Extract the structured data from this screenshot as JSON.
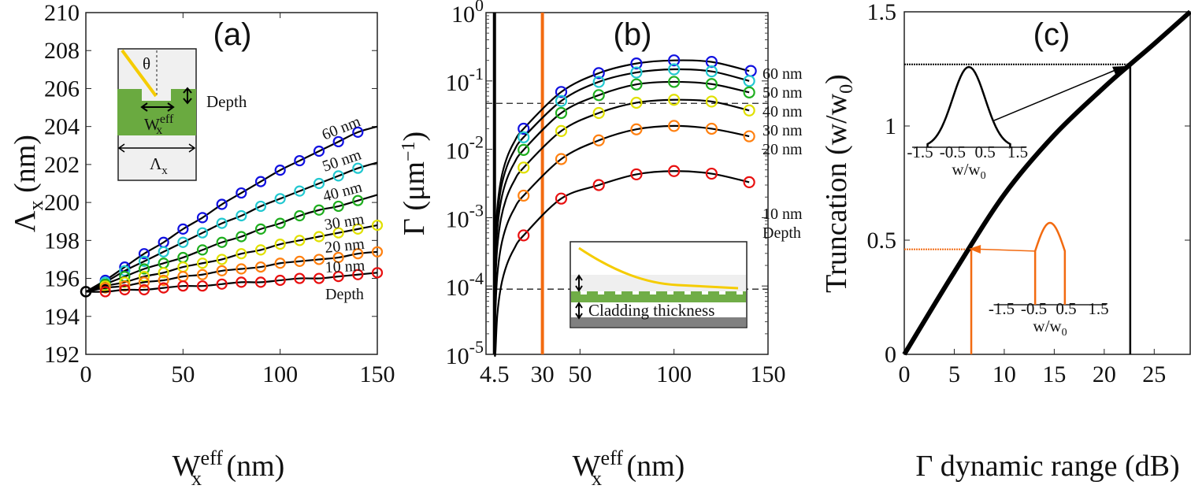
{
  "chart_data": [
    {
      "type": "line",
      "panel": "(a)",
      "xlabel": {
        "main": "W",
        "sub": "x",
        "sup": "eff",
        "unit": " (nm)"
      },
      "ylabel": {
        "main": "Λ",
        "sub": "x",
        "unit": " (nm)"
      },
      "xlim": [
        0,
        150
      ],
      "ylim": [
        192,
        210
      ],
      "xticks": [
        0,
        50,
        100,
        150
      ],
      "xtick_labels": [
        "0",
        "50",
        "100",
        "150"
      ],
      "yticks": [
        192,
        194,
        196,
        198,
        200,
        202,
        204,
        206,
        208,
        210
      ],
      "ytick_labels": [
        "192",
        "194",
        "196",
        "198",
        "200",
        "202",
        "204",
        "206",
        "208",
        "210"
      ],
      "origin": {
        "x": 0,
        "y": 195.3
      },
      "series": [
        {
          "name": "60 nm",
          "color": "#1010e0",
          "x": [
            10,
            20,
            30,
            40,
            50,
            60,
            70,
            80,
            90,
            100,
            110,
            120,
            130,
            140
          ],
          "y": [
            195.9,
            196.6,
            197.3,
            197.9,
            198.6,
            199.2,
            199.9,
            200.5,
            201.1,
            201.7,
            202.2,
            202.7,
            203.2,
            203.7
          ],
          "fit_end": 204.0
        },
        {
          "name": "50 nm",
          "color": "#22c8d0",
          "x": [
            10,
            20,
            30,
            40,
            50,
            60,
            70,
            80,
            90,
            100,
            110,
            120,
            130,
            140
          ],
          "y": [
            195.8,
            196.4,
            196.9,
            197.4,
            197.9,
            198.4,
            198.9,
            199.3,
            199.8,
            200.2,
            200.6,
            201.0,
            201.4,
            201.8
          ],
          "fit_end": 202.1
        },
        {
          "name": "40 nm",
          "color": "#1fae1f",
          "x": [
            10,
            20,
            30,
            40,
            50,
            60,
            70,
            80,
            90,
            100,
            110,
            120,
            130,
            140
          ],
          "y": [
            195.7,
            196.1,
            196.5,
            196.8,
            197.1,
            197.5,
            197.9,
            198.2,
            198.6,
            198.9,
            199.3,
            199.6,
            199.8,
            200.1
          ],
          "fit_end": 200.4
        },
        {
          "name": "30 nm",
          "color": "#e0e000",
          "x": [
            10,
            20,
            30,
            40,
            50,
            60,
            70,
            80,
            90,
            100,
            110,
            120,
            130,
            140,
            150
          ],
          "y": [
            195.6,
            195.8,
            196.1,
            196.3,
            196.6,
            196.8,
            197.0,
            197.3,
            197.5,
            197.8,
            198.0,
            198.2,
            198.4,
            198.6,
            198.8
          ],
          "fit_end": 198.8
        },
        {
          "name": "20 nm",
          "color": "#ff8010",
          "x": [
            10,
            20,
            30,
            40,
            50,
            60,
            70,
            80,
            90,
            100,
            110,
            120,
            130,
            140,
            150
          ],
          "y": [
            195.5,
            195.6,
            195.8,
            195.9,
            196.1,
            196.2,
            196.4,
            196.5,
            196.6,
            196.8,
            196.9,
            197.0,
            197.1,
            197.3,
            197.4
          ],
          "fit_end": 197.4
        },
        {
          "name": "10 nm",
          "color": "#e81010",
          "x": [
            10,
            20,
            30,
            40,
            50,
            60,
            70,
            80,
            90,
            100,
            110,
            120,
            130,
            140,
            150
          ],
          "y": [
            195.3,
            195.4,
            195.4,
            195.5,
            195.6,
            195.6,
            195.7,
            195.8,
            195.8,
            195.9,
            196.0,
            196.0,
            196.1,
            196.2,
            196.3
          ],
          "fit_end": 196.3
        }
      ],
      "series_caption": "Depth",
      "inset": {
        "theta": "θ",
        "depth": "Depth",
        "w_main": "W",
        "w_sub": "x",
        "w_sup": "eff",
        "period_main": "Λ",
        "period_sub": "x"
      }
    },
    {
      "type": "line",
      "panel": "(b)",
      "yscale": "log",
      "xlabel": {
        "main": "W",
        "sub": "x",
        "sup": "eff",
        "unit": " (nm)"
      },
      "ylabel": {
        "main": "Γ (μm",
        "sup": "−1",
        "end": ")"
      },
      "xlim": [
        0,
        150
      ],
      "ylim": [
        1e-05,
        1
      ],
      "xticks": [
        4.5,
        30,
        50,
        100,
        150
      ],
      "xtick_labels": [
        "4.5",
        "30",
        "50",
        "100",
        "150"
      ],
      "yticks": [
        1e-05,
        0.0001,
        0.001,
        0.01,
        0.1,
        1
      ],
      "ytick_labels": [
        {
          "base": "10",
          "exp": "-5"
        },
        {
          "base": "10",
          "exp": "-4"
        },
        {
          "base": "10",
          "exp": "-3"
        },
        {
          "base": "10",
          "exp": "-2"
        },
        {
          "base": "10",
          "exp": "-1"
        },
        {
          "base": "10",
          "exp": "0"
        }
      ],
      "x": [
        20,
        40,
        60,
        80,
        100,
        120,
        140
      ],
      "series": [
        {
          "name": "60 nm",
          "color": "#1010e0",
          "y": [
            0.02,
            0.069,
            0.13,
            0.18,
            0.2,
            0.19,
            0.14
          ]
        },
        {
          "name": "50 nm",
          "color": "#22c8d0",
          "y": [
            0.015,
            0.051,
            0.097,
            0.133,
            0.148,
            0.138,
            0.1
          ]
        },
        {
          "name": "40 nm",
          "color": "#1fae1f",
          "y": [
            0.0098,
            0.034,
            0.062,
            0.089,
            0.097,
            0.09,
            0.068
          ]
        },
        {
          "name": "30 nm",
          "color": "#e0e000",
          "y": [
            0.0054,
            0.0185,
            0.034,
            0.048,
            0.053,
            0.05,
            0.037
          ]
        },
        {
          "name": "20 nm",
          "color": "#ff8010",
          "y": [
            0.0021,
            0.0072,
            0.0135,
            0.0196,
            0.022,
            0.02,
            0.0155
          ]
        },
        {
          "name": "10 nm",
          "color": "#e81010",
          "y": [
            0.00055,
            0.0019,
            0.003,
            0.0043,
            0.0048,
            0.0044,
            0.0033
          ]
        }
      ],
      "series_caption": "Depth",
      "hlines": [
        0.047,
        9e-05
      ],
      "vlines": [
        {
          "x": 4.5,
          "color": "#000000"
        },
        {
          "x": 30,
          "color": "#f26a10"
        }
      ],
      "inset": {
        "label": "Cladding thickness"
      }
    },
    {
      "type": "line",
      "panel": "(c)",
      "xlabel": "Γ dynamic range (dB)",
      "ylabel": {
        "main": "Truncation (w/w",
        "sub": "0",
        "end": ")"
      },
      "xlim": [
        0,
        28.6
      ],
      "ylim": [
        0,
        1.5
      ],
      "xticks": [
        0,
        5,
        10,
        15,
        20,
        25
      ],
      "xtick_labels": [
        "0",
        "5",
        "10",
        "15",
        "20",
        "25"
      ],
      "yticks": [
        0,
        0.5,
        1,
        1.5
      ],
      "ytick_labels": [
        "0",
        "0.5",
        "1",
        "1.5"
      ],
      "curve": {
        "x": [
          0,
          5,
          10,
          15,
          20,
          22.6,
          25,
          28.6
        ],
        "y": [
          0,
          0.36,
          0.7,
          0.96,
          1.17,
          1.27,
          1.36,
          1.5
        ]
      },
      "markers": [
        {
          "x": 22.6,
          "y": 1.27,
          "color": "#000000"
        },
        {
          "x": 6.7,
          "y": 0.46,
          "color": "#f26a10"
        }
      ],
      "insets": [
        {
          "truncation": 1.27,
          "color": "#000000",
          "tick_labels": [
            "-1.5",
            "-0.5",
            "0.5",
            "1.5"
          ],
          "xlabel_main": "w/w",
          "xlabel_sub": "0"
        },
        {
          "truncation": 0.46,
          "color": "#f26a10",
          "tick_labels": [
            "-1.5",
            "-0.5",
            "0.5",
            "1.5"
          ],
          "xlabel_main": "w/w",
          "xlabel_sub": "0"
        }
      ]
    }
  ]
}
